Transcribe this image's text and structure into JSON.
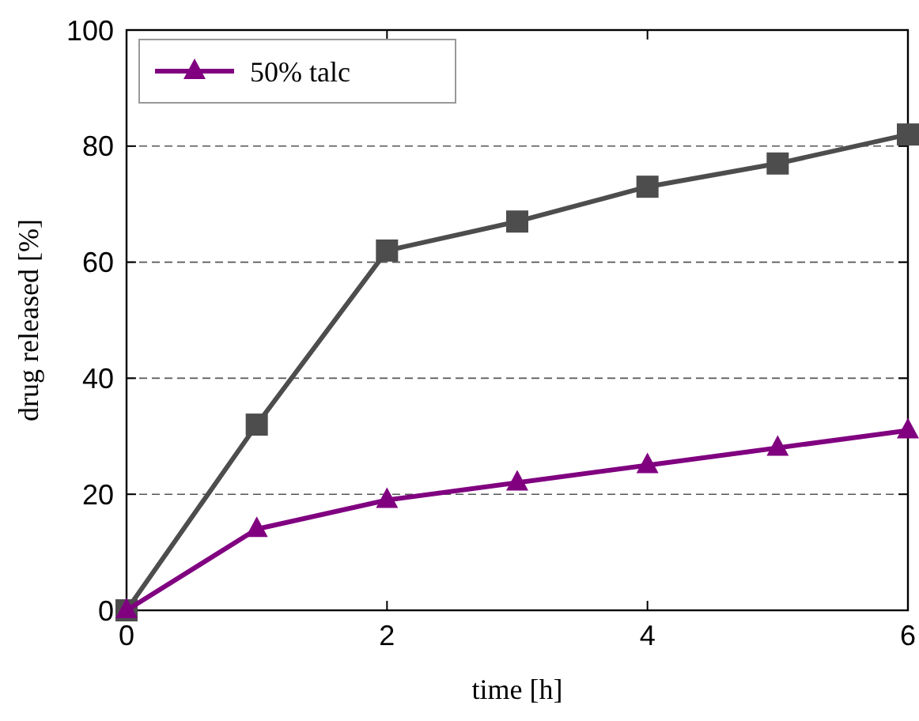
{
  "chart_data": {
    "type": "line",
    "xlabel": "time [h]",
    "ylabel": "drug released [%]",
    "x": [
      0,
      1,
      2,
      3,
      4,
      5,
      6
    ],
    "series": [
      {
        "color": "#4d4d4d",
        "marker": "square",
        "values": [
          0,
          32,
          62,
          67,
          73,
          77,
          82
        ]
      },
      {
        "name": "50% talc",
        "color": "#800080",
        "marker": "triangle",
        "values": [
          0,
          14,
          19,
          22,
          25,
          28,
          31
        ]
      }
    ],
    "xlim": [
      0,
      6
    ],
    "xticks": [
      0,
      2,
      4,
      6
    ],
    "ylim": [
      0,
      100
    ],
    "yticks": [
      0,
      20,
      40,
      60,
      80,
      100
    ],
    "grid": "y",
    "legend": "top left"
  }
}
